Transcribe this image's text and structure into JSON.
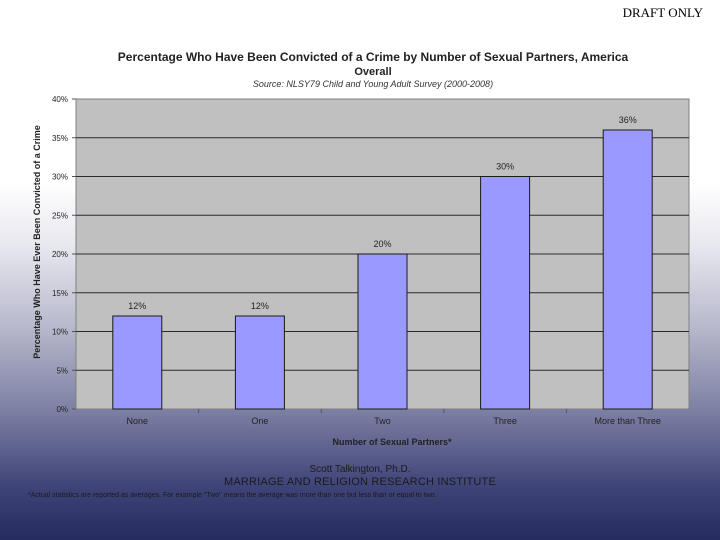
{
  "watermark": "DRAFT ONLY",
  "chart_data": {
    "type": "bar",
    "title": "Percentage Who Have Been Convicted of a Crime by Number of Sexual Partners, America",
    "subtitle": "Overall",
    "source": "Source: NLSY79 Child and Young Adult Survey (2000-2008)",
    "xlabel": "Number of Sexual Partners*",
    "ylabel": "Percentage Who Have Ever Been Convicted of a Crime",
    "categories": [
      "None",
      "One",
      "Two",
      "Three",
      "More than Three"
    ],
    "values": [
      12,
      12,
      20,
      30,
      36
    ],
    "data_labels": [
      "12%",
      "12%",
      "20%",
      "30%",
      "36%"
    ],
    "ylim": [
      0,
      40
    ],
    "yticks": [
      0,
      5,
      10,
      15,
      20,
      25,
      30,
      35,
      40
    ],
    "ytick_labels": [
      "0%",
      "5%",
      "10%",
      "15%",
      "20%",
      "25%",
      "30%",
      "35%",
      "40%"
    ],
    "grid": true,
    "colors": {
      "bar": "#9999ff",
      "plot_bg": "#c0c0c0"
    }
  },
  "footer": {
    "author": "Scott Talkington, Ph.D.",
    "institute": "MARRIAGE AND RELIGION RESEARCH INSTITUTE",
    "note": "*Actual statistics are reported as averages. For example \"Two\" means the average was more than one but less than or equal to two."
  }
}
